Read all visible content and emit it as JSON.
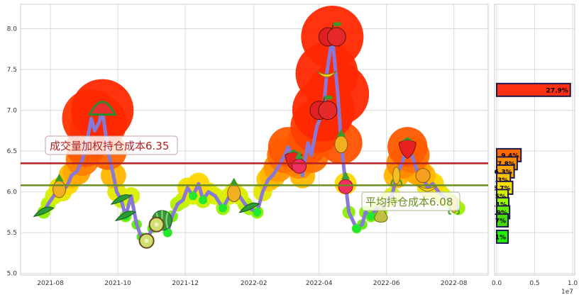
{
  "chart_data": [
    {
      "type": "line",
      "title": "",
      "xlabel": "",
      "ylabel": "",
      "grid": true,
      "ylim": [
        4.98,
        8.3
      ],
      "xlim": [
        "2021-07-05",
        "2022-09-01"
      ],
      "y_ticks": [
        "5.0",
        "5.5",
        "6.0",
        "6.5",
        "7.0",
        "7.5",
        "8.0"
      ],
      "x_ticks": [
        {
          "date": "2021-08-01",
          "label": "2021-08"
        },
        {
          "date": "2021-10-01",
          "label": "2021-10"
        },
        {
          "date": "2021-12-01",
          "label": "2021-12"
        },
        {
          "date": "2022-02-01",
          "label": "2022-02"
        },
        {
          "date": "2022-04-01",
          "label": "2022-04"
        },
        {
          "date": "2022-06-01",
          "label": "2022-06"
        },
        {
          "date": "2022-08-01",
          "label": "2022-08"
        }
      ],
      "series": [
        {
          "color": "#8878d8",
          "x": [
            "2021-07-26",
            "2021-07-30",
            "2021-08-04",
            "2021-08-09",
            "2021-08-12",
            "2021-08-17",
            "2021-08-20",
            "2021-08-25",
            "2021-08-30",
            "2021-09-02",
            "2021-09-07",
            "2021-09-10",
            "2021-09-14",
            "2021-09-17",
            "2021-09-22",
            "2021-09-27",
            "2021-09-30",
            "2021-10-04",
            "2021-10-08",
            "2021-10-13",
            "2021-10-18",
            "2021-10-22",
            "2021-10-27",
            "2021-11-01",
            "2021-11-05",
            "2021-11-10",
            "2021-11-15",
            "2021-11-19",
            "2021-11-24",
            "2021-11-29",
            "2021-12-03",
            "2021-12-08",
            "2021-12-13",
            "2021-12-17",
            "2021-12-22",
            "2021-12-28",
            "2022-01-04",
            "2022-01-10",
            "2022-01-14",
            "2022-01-19",
            "2022-01-24",
            "2022-01-28",
            "2022-02-04",
            "2022-02-09",
            "2022-02-14",
            "2022-02-18",
            "2022-02-23",
            "2022-03-01",
            "2022-03-04",
            "2022-03-09",
            "2022-03-14",
            "2022-03-17",
            "2022-03-22",
            "2022-03-25",
            "2022-03-30",
            "2022-04-05",
            "2022-04-08",
            "2022-04-13",
            "2022-04-18",
            "2022-04-21",
            "2022-04-25",
            "2022-04-28",
            "2022-05-05",
            "2022-05-10",
            "2022-05-13",
            "2022-05-18",
            "2022-05-23",
            "2022-05-27",
            "2022-06-01",
            "2022-06-06",
            "2022-06-10",
            "2022-06-15",
            "2022-06-20",
            "2022-06-24",
            "2022-06-29",
            "2022-07-04",
            "2022-07-08",
            "2022-07-13",
            "2022-07-18",
            "2022-07-22",
            "2022-07-27",
            "2022-08-01",
            "2022-08-05"
          ],
          "values": [
            5.75,
            5.85,
            5.95,
            6.05,
            6.0,
            6.1,
            6.2,
            6.25,
            6.4,
            6.55,
            6.9,
            6.75,
            6.85,
            7.0,
            6.5,
            6.2,
            6.0,
            5.9,
            5.7,
            5.95,
            5.6,
            5.45,
            5.4,
            5.55,
            5.6,
            5.65,
            5.5,
            5.7,
            5.85,
            5.9,
            6.05,
            5.95,
            6.1,
            5.9,
            6.0,
            5.95,
            5.8,
            5.95,
            6.0,
            5.95,
            5.85,
            5.8,
            5.75,
            6.0,
            6.15,
            6.2,
            6.3,
            6.45,
            6.55,
            6.4,
            6.35,
            6.2,
            6.6,
            6.45,
            6.8,
            7.0,
            7.45,
            7.9,
            7.2,
            6.6,
            6.1,
            5.75,
            5.55,
            5.6,
            5.75,
            5.7,
            5.8,
            5.75,
            5.9,
            5.95,
            6.2,
            6.35,
            6.55,
            6.45,
            6.25,
            6.2,
            6.05,
            6.1,
            6.0,
            5.95,
            5.9,
            5.85,
            5.8
          ]
        }
      ],
      "reference_lines": [
        {
          "label": "成交量加权持仓成本6.35",
          "value": 6.35,
          "color": "#b22222"
        },
        {
          "label": "平均持仓成本6.08",
          "value": 6.08,
          "color": "#6b8e23"
        }
      ]
    },
    {
      "type": "bar",
      "orientation": "horizontal",
      "xlim": [
        0,
        10000000
      ],
      "x_ticks": [
        "0.0",
        "0.5",
        "1.0"
      ],
      "x_offset_label": "1e7",
      "bars": [
        {
          "price": 7.25,
          "value": 9700000,
          "label": "27.9%",
          "color": "#ff3010"
        },
        {
          "price": 6.45,
          "value": 3200000,
          "label": "9.4%",
          "color": "#ff6a00"
        },
        {
          "price": 6.35,
          "value": 2700000,
          "label": "7.8%",
          "color": "#ff8c00"
        },
        {
          "price": 6.25,
          "value": 2300000,
          "label": "6.3%",
          "color": "#ffa500"
        },
        {
          "price": 6.15,
          "value": 1800000,
          "label": "5.3%",
          "color": "#ffc400"
        },
        {
          "price": 6.05,
          "value": 2100000,
          "label": "6.7%",
          "color": "#ffe100"
        },
        {
          "price": 5.95,
          "value": 1500000,
          "label": "4.5%",
          "color": "#d8f000"
        },
        {
          "price": 5.85,
          "value": 1600000,
          "label": "4.1%",
          "color": "#99ff00"
        },
        {
          "price": 5.75,
          "value": 1700000,
          "label": "5.9%",
          "color": "#66ee00"
        },
        {
          "price": 5.65,
          "value": 1500000,
          "label": "4.7%",
          "color": "#44dd00"
        },
        {
          "price": 5.45,
          "value": 1500000,
          "label": "4.1%",
          "color": "#22ee00"
        }
      ]
    }
  ]
}
